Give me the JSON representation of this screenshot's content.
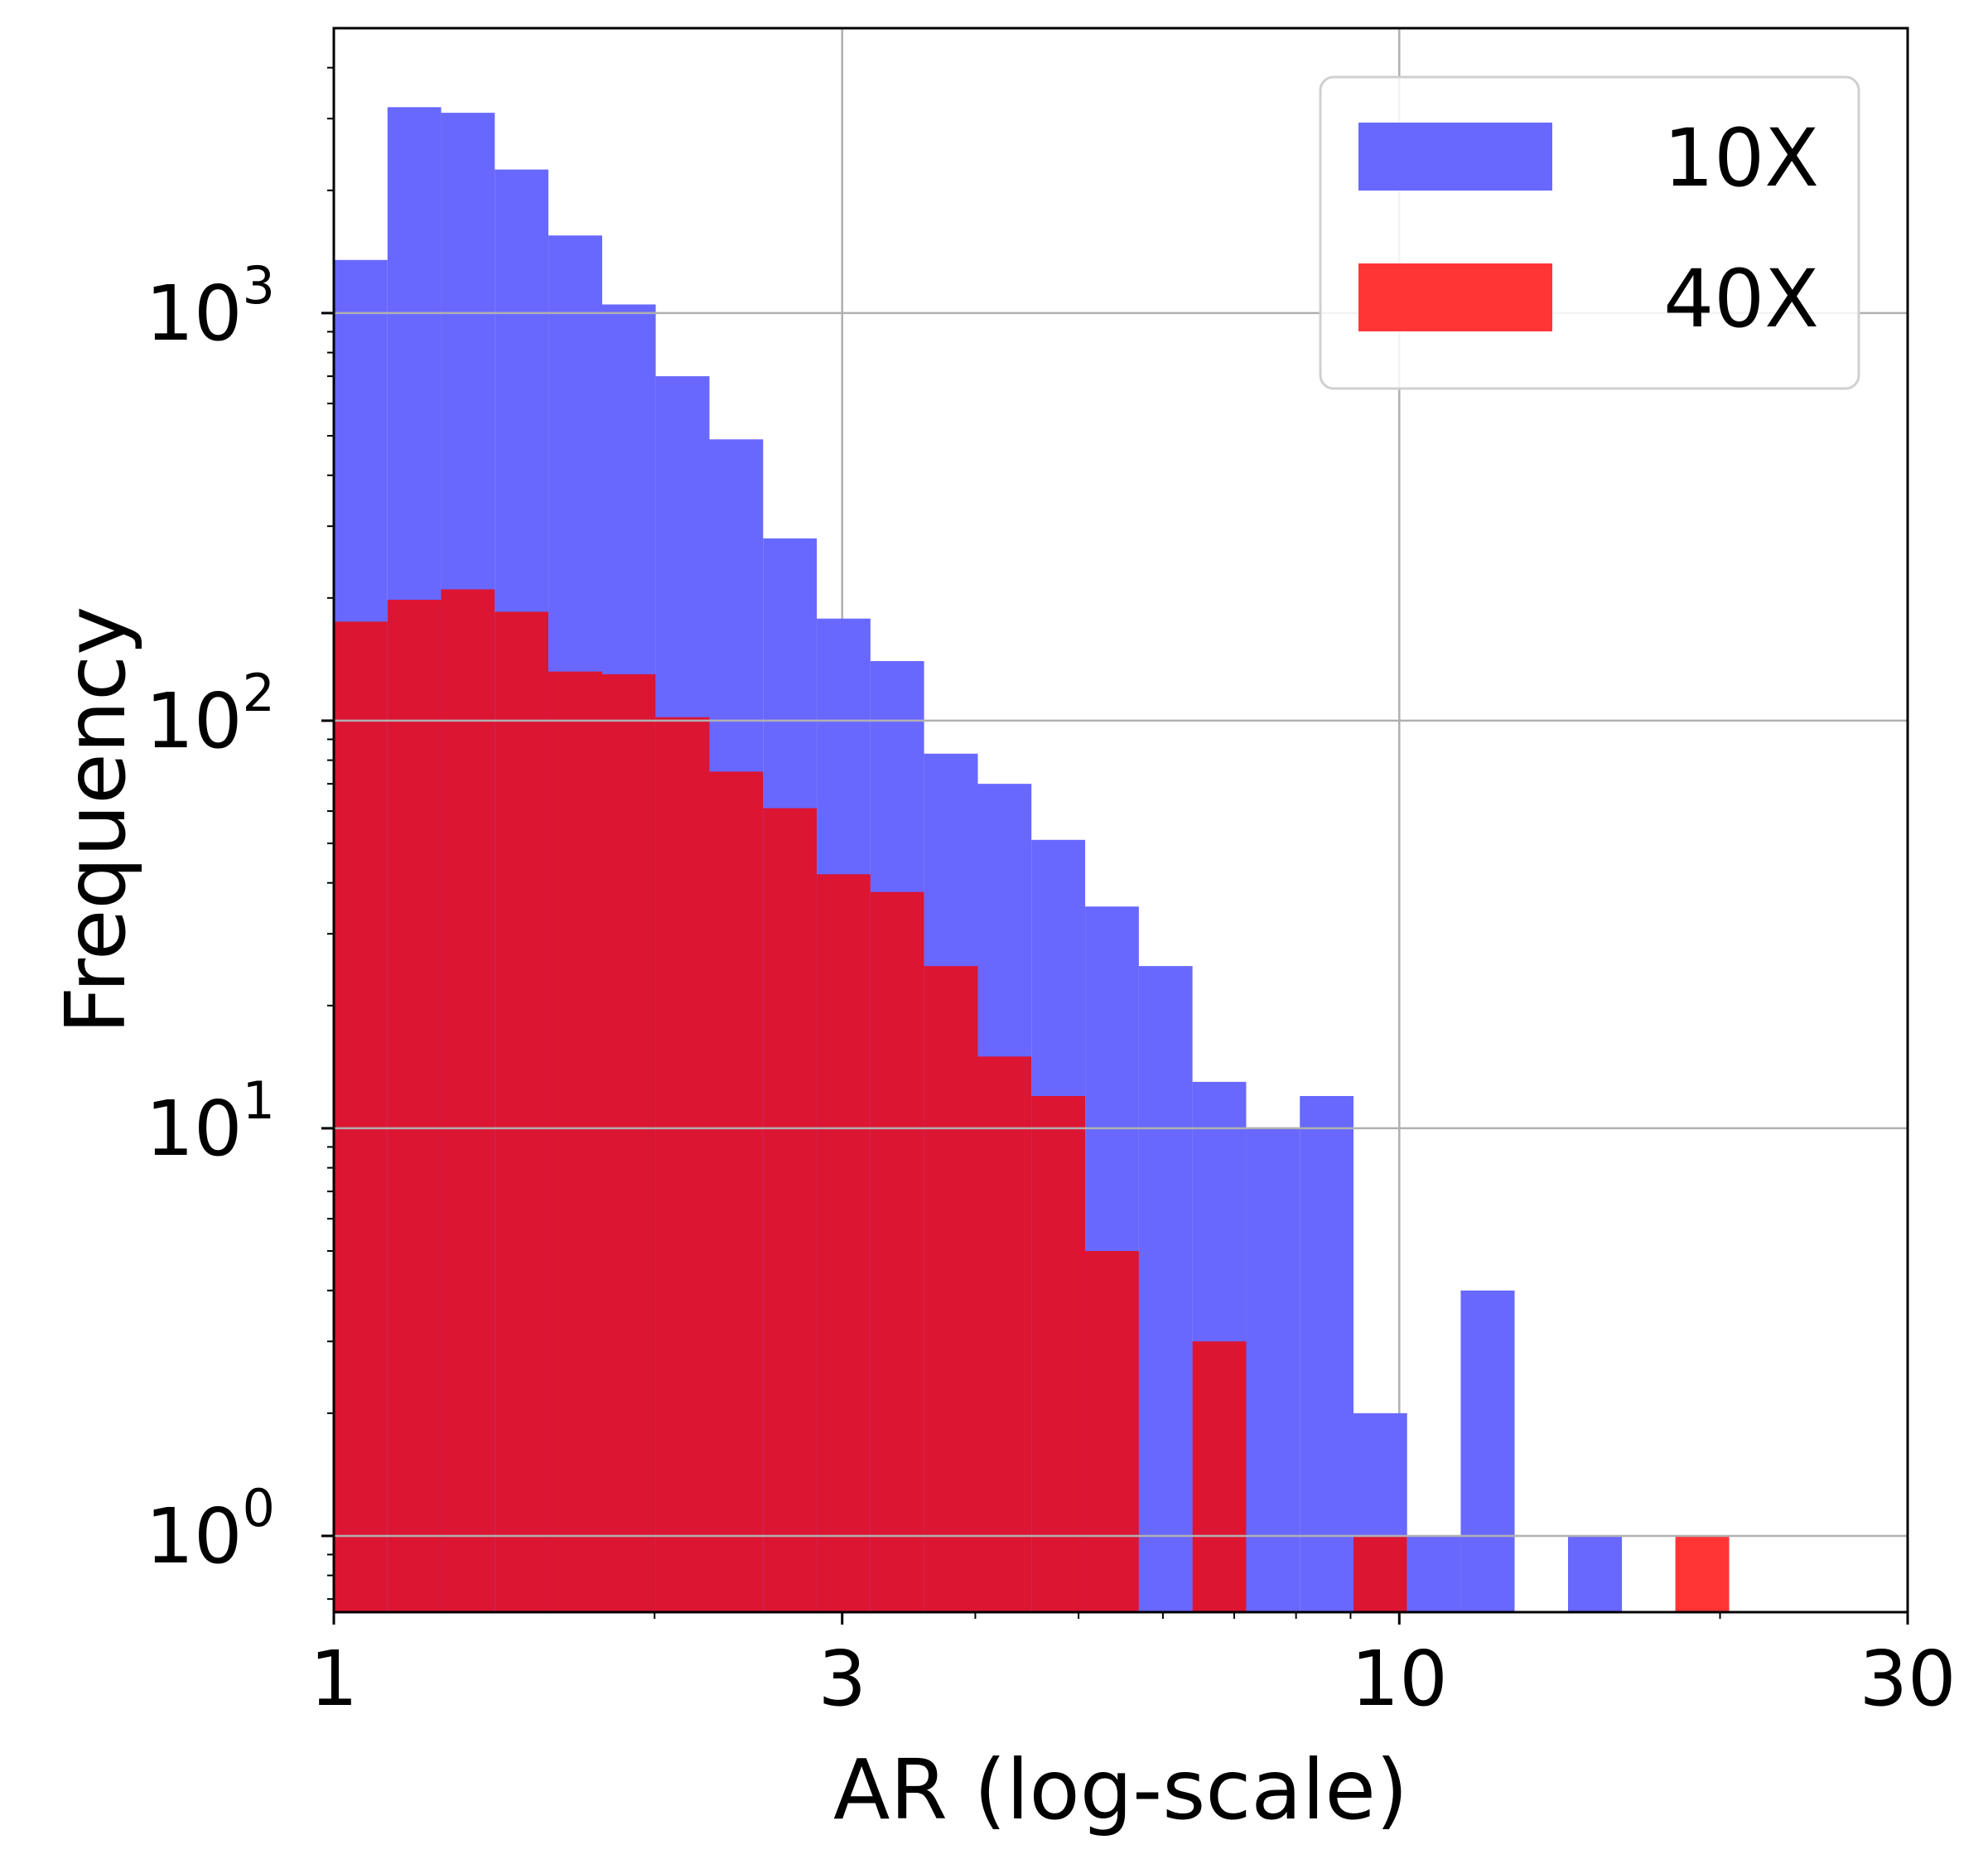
{
  "chart_data": {
    "type": "bar",
    "title": "",
    "xlabel": "AR (log-scale)",
    "ylabel": "Frequency",
    "xscale": "log",
    "yscale": "log",
    "xlim": [
      1,
      30
    ],
    "ylim": [
      0.65,
      5000
    ],
    "grid": true,
    "legend_position": "top-right",
    "xticks": [
      {
        "value": 1,
        "label": "1"
      },
      {
        "value": 3,
        "label": "3"
      },
      {
        "value": 10,
        "label": "10"
      },
      {
        "value": 30,
        "label": "30"
      }
    ],
    "yticks": [
      {
        "value": 1,
        "base": "10",
        "exp": "0"
      },
      {
        "value": 10,
        "base": "10",
        "exp": "1"
      },
      {
        "value": 100,
        "base": "10",
        "exp": "2"
      },
      {
        "value": 1000,
        "base": "10",
        "exp": "3"
      }
    ],
    "bin_edges": [
      1.0,
      1.123,
      1.261,
      1.416,
      1.59,
      1.786,
      2.005,
      2.252,
      2.529,
      2.84,
      3.189,
      3.581,
      4.022,
      4.516,
      5.072,
      5.696,
      6.396,
      7.183,
      8.066,
      9.058,
      10.17,
      11.42,
      12.83,
      14.4,
      16.18,
      18.16,
      20.4,
      22.9
    ],
    "series": [
      {
        "name": "10X",
        "color": "#6868ff",
        "values": [
          1350,
          3200,
          3100,
          2250,
          1550,
          1050,
          700,
          490,
          280,
          178,
          140,
          83,
          70,
          51,
          35,
          25,
          13,
          10,
          12,
          2,
          1,
          4,
          0,
          1,
          0,
          0,
          0
        ]
      },
      {
        "name": "40X",
        "color": "#ff3535",
        "values": [
          175,
          198,
          210,
          185,
          132,
          130,
          102,
          75,
          61,
          42,
          38,
          25,
          15,
          12,
          5,
          0,
          3,
          0,
          0,
          1,
          0,
          0,
          0,
          0,
          0,
          1,
          0
        ]
      }
    ],
    "overlap_color": "#dc1533"
  }
}
